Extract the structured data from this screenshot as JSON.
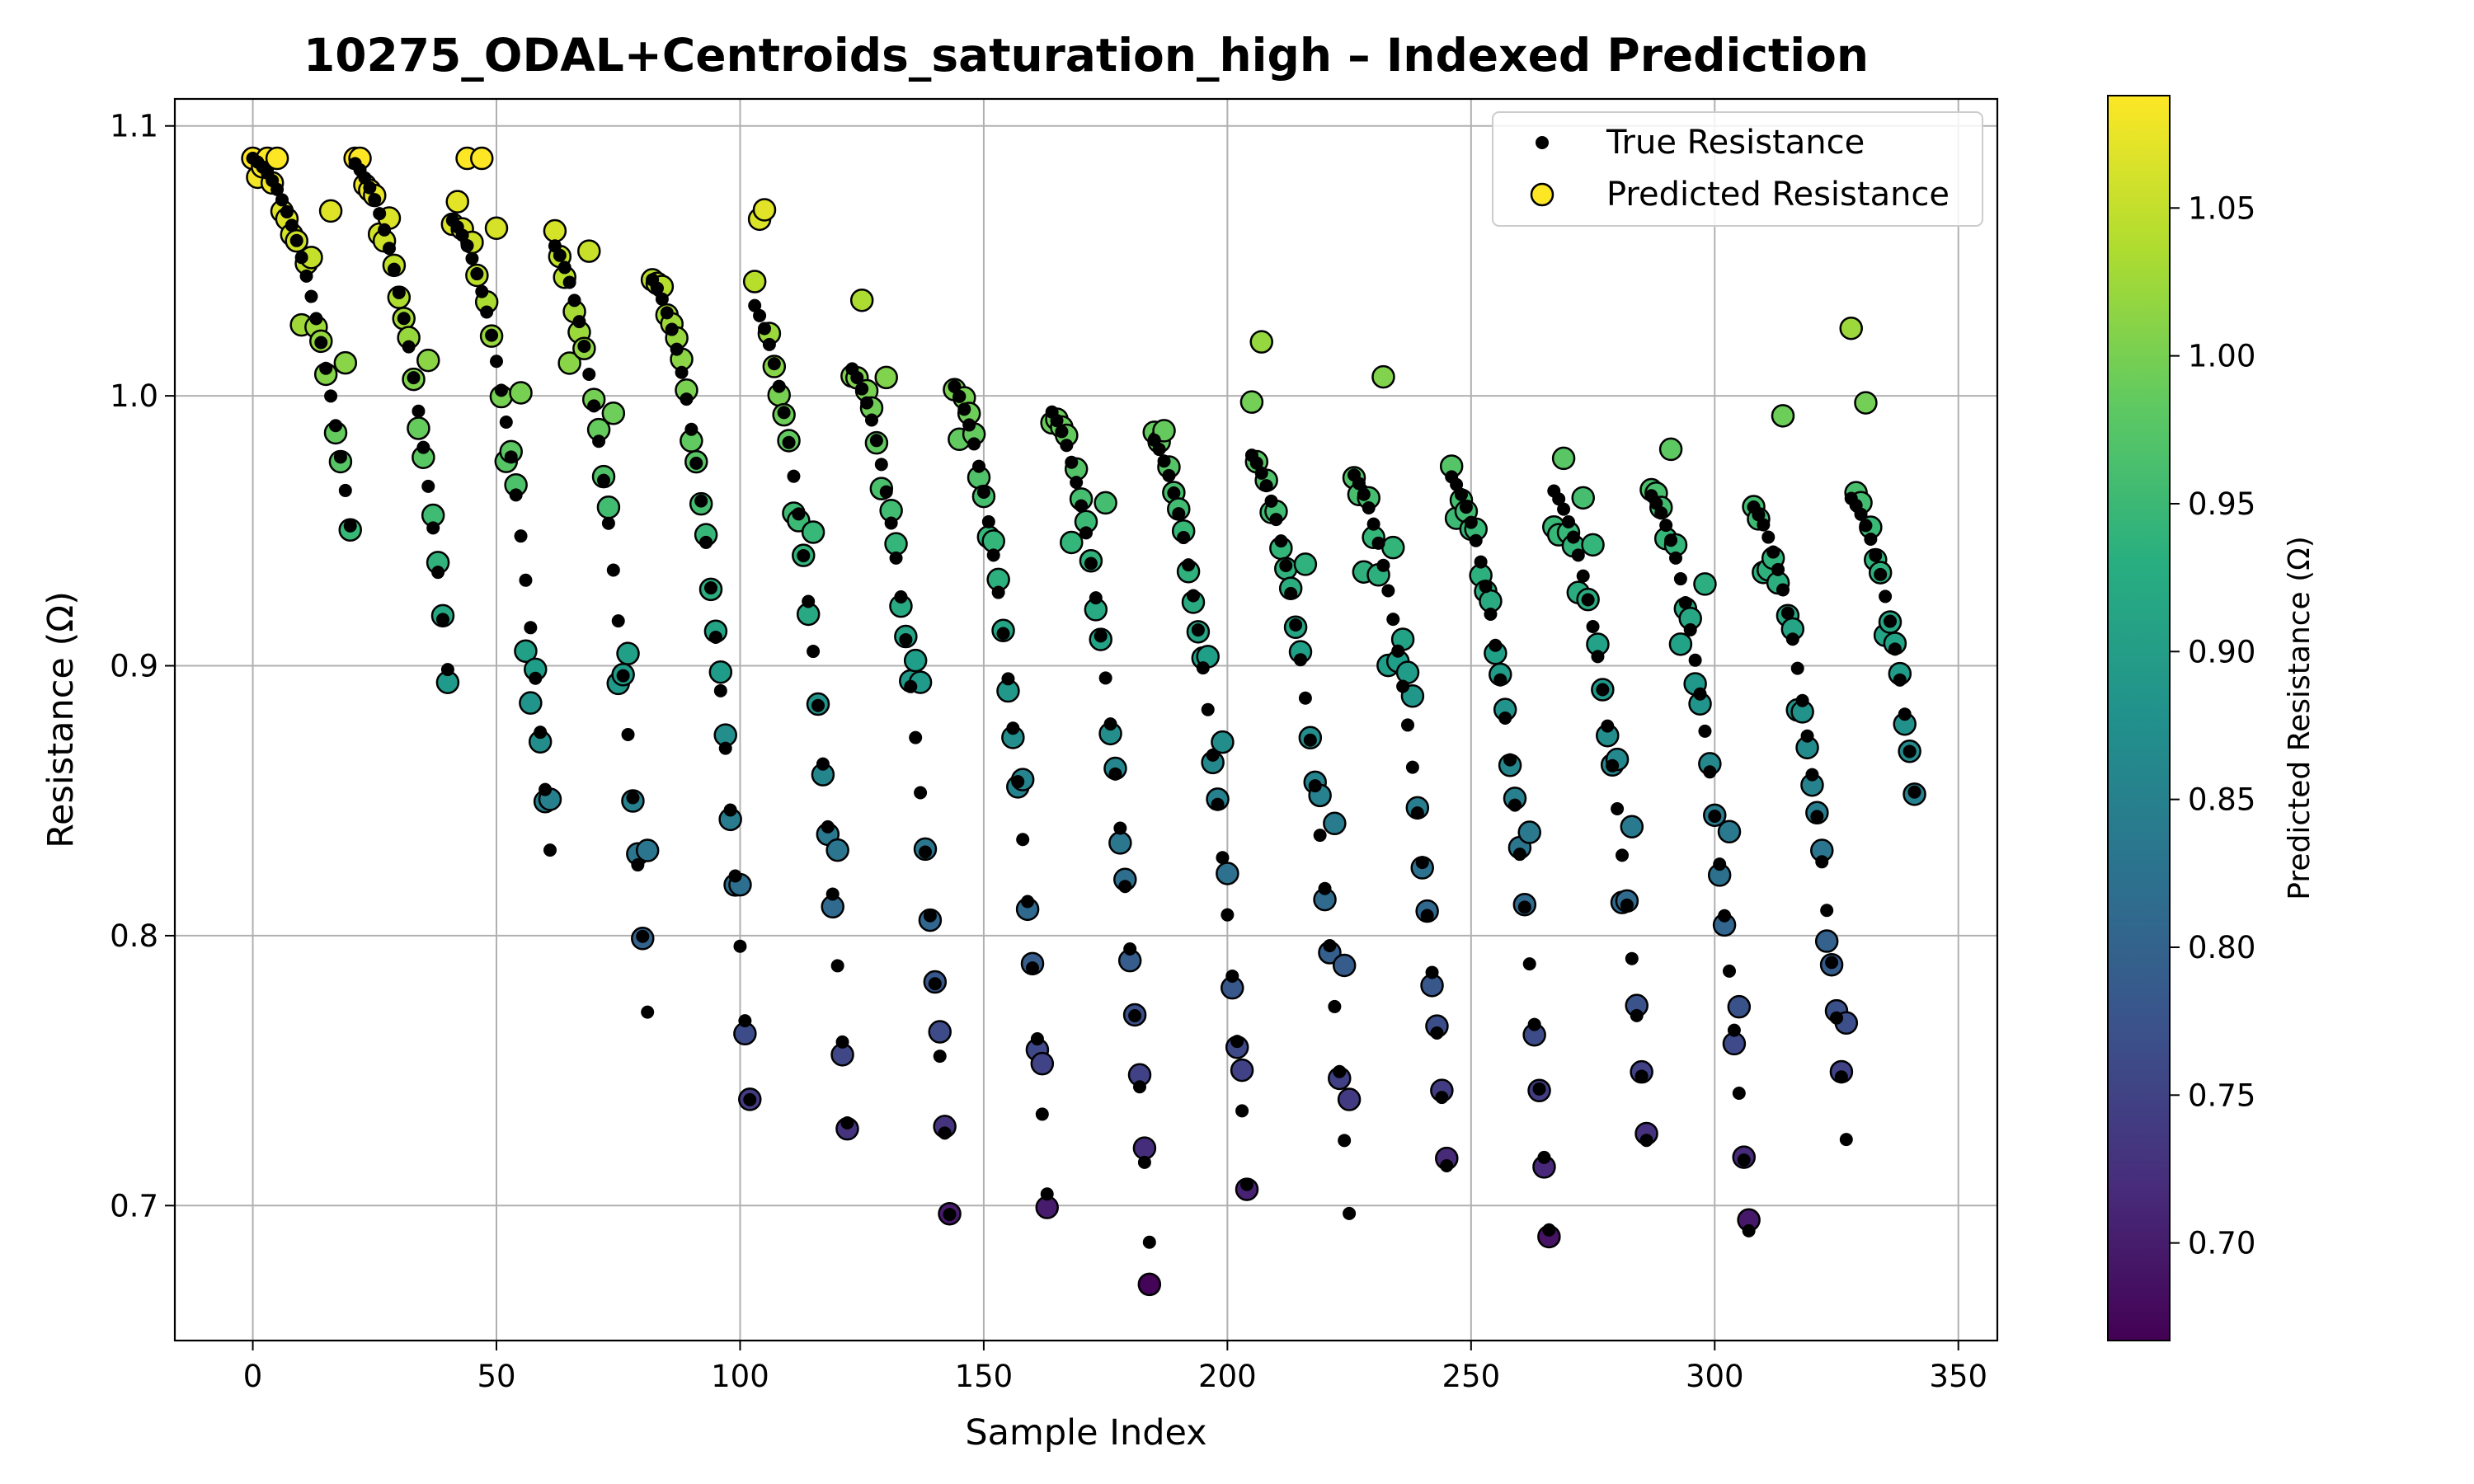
{
  "chart_data": {
    "type": "scatter",
    "title": "10275_ODAL+Centroids_saturation_high – Indexed Prediction",
    "xlabel": "Sample Index",
    "ylabel": "Resistance (Ω)",
    "xlim": [
      -16,
      358
    ],
    "ylim": [
      0.65,
      1.11
    ],
    "x_ticks": [
      0,
      50,
      100,
      150,
      200,
      250,
      300,
      350
    ],
    "y_ticks": [
      0.7,
      0.8,
      0.9,
      1.0,
      1.1
    ],
    "x_tick_labels": [
      "0",
      "50",
      "100",
      "150",
      "200",
      "250",
      "300",
      "350"
    ],
    "y_tick_labels": [
      "0.7",
      "0.8",
      "0.9",
      "1.0",
      "1.1"
    ],
    "grid": true,
    "legend_position": "top-right",
    "legend": [
      {
        "label": "True Resistance",
        "marker": "small-black-dot"
      },
      {
        "label": "Predicted Resistance",
        "marker": "colormap-circle"
      }
    ],
    "colorbar": {
      "label": "Predicted Resistance (Ω)",
      "colormap": "viridis",
      "range": [
        0.667,
        1.088
      ],
      "ticks": [
        0.7,
        0.75,
        0.8,
        0.85,
        0.9,
        0.95,
        1.0,
        1.05
      ],
      "tick_labels": [
        "0.70",
        "0.75",
        "0.80",
        "0.85",
        "0.90",
        "0.95",
        "1.00",
        "1.05"
      ]
    },
    "cycle_period": 20.5,
    "cycle_start_values": [
      1.088,
      1.087,
      1.065,
      1.057,
      1.043,
      1.035,
      1.01,
      1.005,
      0.994,
      0.985,
      0.978,
      0.972,
      0.97,
      0.966,
      0.963,
      0.96,
      0.962
    ],
    "cycle_end_values": [
      0.945,
      0.879,
      0.82,
      0.742,
      0.724,
      0.699,
      0.681,
      0.673,
      0.671,
      0.679,
      0.683,
      0.688,
      0.677,
      0.699,
      0.677,
      0.7,
      0.7
    ],
    "sample_count": 342
  }
}
